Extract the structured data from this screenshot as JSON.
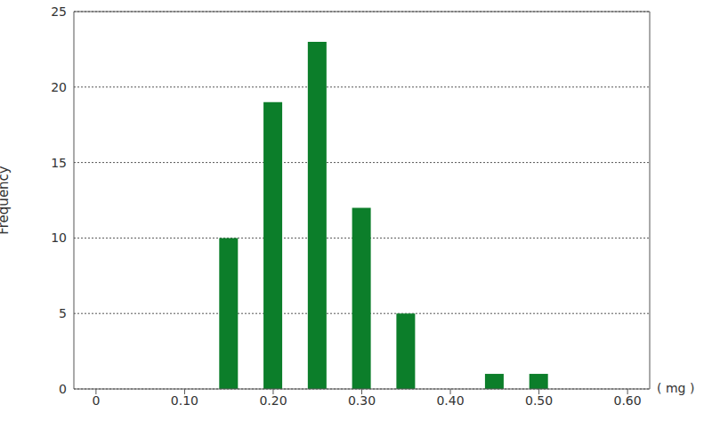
{
  "chart_data": {
    "type": "bar",
    "y_label": "Frequency",
    "x_label": "( mg )",
    "x": [
      0.15,
      0.2,
      0.25,
      0.3,
      0.35,
      0.45,
      0.5
    ],
    "values": [
      10,
      19,
      23,
      12,
      5,
      1,
      1
    ],
    "color": "#0c7e2a",
    "xlim": [
      -0.025,
      0.625
    ],
    "xticks": [
      {
        "value": 0,
        "label": "0"
      },
      {
        "value": 0.1,
        "label": "0.10"
      },
      {
        "value": 0.2,
        "label": "0.20"
      },
      {
        "value": 0.3,
        "label": "0.30"
      },
      {
        "value": 0.4,
        "label": "0.40"
      },
      {
        "value": 0.5,
        "label": "0.50"
      },
      {
        "value": 0.6,
        "label": "0.60"
      }
    ],
    "ylim": [
      0,
      25
    ],
    "yticks": [
      0,
      5,
      10,
      15,
      20,
      25
    ],
    "grid": true
  }
}
